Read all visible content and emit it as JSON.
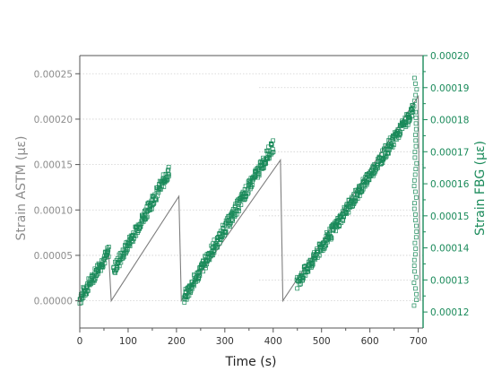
{
  "chart_data": {
    "type": "scatter",
    "xlabel": "Time (s)",
    "ylabel_left": "Strain ASTM (µε)",
    "ylabel_right": "Strain FBG (µε)",
    "xlim": [
      0,
      710
    ],
    "ylim_left": [
      -3e-05,
      0.00027
    ],
    "ylim_right": [
      0.000115,
      0.0002
    ],
    "x_ticks": [
      "0",
      "100",
      "200",
      "300",
      "400",
      "500",
      "600",
      "700"
    ],
    "x_tick_values": [
      0,
      100,
      200,
      300,
      400,
      500,
      600,
      700
    ],
    "y_left_ticks": [
      "0.00000",
      "0.00005",
      "0.00010",
      "0.00015",
      "0.00020",
      "0.00025"
    ],
    "y_left_tick_values": [
      0,
      5e-05,
      0.0001,
      0.00015,
      0.0002,
      0.00025
    ],
    "y_right_ticks": [
      "0.00012",
      "0.00013",
      "0.00014",
      "0.00015",
      "0.00016",
      "0.00017",
      "0.00018",
      "0.00019",
      "0.00020"
    ],
    "y_right_tick_values": [
      0.00012,
      0.00013,
      0.00014,
      0.00015,
      0.00016,
      0.00017,
      0.00018,
      0.00019,
      0.0002
    ],
    "grid": "horizontal dotted",
    "colors": {
      "astm": "#7f7f7f",
      "fbg": "#1a8a5a",
      "axis_left": "#8c8c8c",
      "axis_right": "#1a8a5a",
      "grid": "#d0d0d0"
    },
    "series": [
      {
        "axis": "left",
        "style": "line",
        "color": "#7f7f7f",
        "x": [
          0,
          60,
          65,
          205,
          210,
          415,
          420,
          700,
          704
        ],
        "y": [
          0.0,
          5e-05,
          0.0,
          0.000115,
          0.0,
          0.000155,
          0.0,
          0.000225,
          0.0
        ]
      },
      {
        "axis": "right",
        "style": "markers",
        "color": "#1a8a5a",
        "segments": [
          {
            "x0": 0,
            "x1": 60,
            "y0": 0.000124,
            "y1": 0.000139
          },
          {
            "x0": 70,
            "x1": 185,
            "y0": 0.000133,
            "y1": 0.000164
          },
          {
            "x0": 215,
            "x1": 400,
            "y0": 0.000124,
            "y1": 0.000172
          },
          {
            "x0": 450,
            "x1": 690,
            "y0": 0.000129,
            "y1": 0.000183
          }
        ],
        "jump": {
          "x": 694,
          "y0": 0.000122,
          "y1": 0.000193
        },
        "noise": 1.2e-06
      }
    ]
  }
}
